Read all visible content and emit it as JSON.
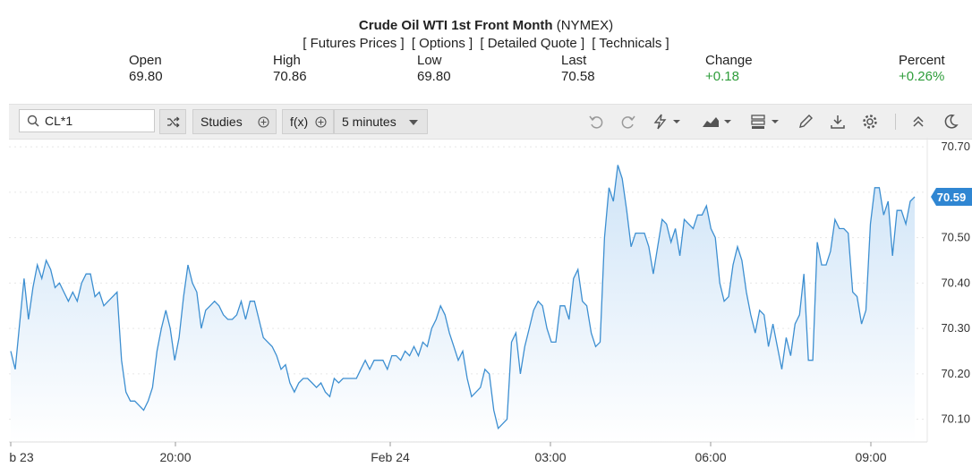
{
  "header": {
    "title_bold": "Crude Oil WTI 1st Front Month",
    "title_suffix": "(NYMEX)",
    "links": [
      "[ Futures Prices ]",
      "[ Options ]",
      "[ Detailed Quote ]",
      "[ Technicals ]"
    ]
  },
  "quote": {
    "open_label": "Open",
    "open_value": "69.80",
    "high_label": "High",
    "high_value": "70.86",
    "low_label": "Low",
    "low_value": "69.80",
    "last_label": "Last",
    "last_value": "70.58",
    "change_label": "Change",
    "change_value": "+0.18",
    "percent_label": "Percent",
    "percent_value": "+0.26%"
  },
  "toolbar": {
    "symbol_value": "CL*1",
    "studies_label": "Studies",
    "fx_label": "f(x)",
    "interval_label": "5 minutes",
    "icons": [
      "search-icon",
      "shuffle-icon",
      "plus-circle-icon",
      "undo-icon",
      "redo-icon",
      "lightning-icon",
      "area-chart-icon",
      "bars-icon",
      "pencil-icon",
      "download-icon",
      "gear-icon",
      "collapse-icon",
      "moon-icon"
    ]
  },
  "colors": {
    "line": "#3d8fd1",
    "fill_top": "#cfe4f7",
    "fill_bottom": "#ffffff",
    "up": "#2e9d3a",
    "badge": "#2f86d2"
  },
  "chart_data": {
    "type": "area",
    "ylim": [
      70.05,
      70.72
    ],
    "y_ticks": [
      "70.70",
      "70.60",
      "70.50",
      "70.40",
      "70.30",
      "70.20",
      "70.10"
    ],
    "y_tick_values": [
      70.7,
      70.6,
      70.5,
      70.4,
      70.3,
      70.2,
      70.1
    ],
    "x_ticks": [
      "b 23",
      "20:00",
      "Feb 24",
      "03:00",
      "06:00",
      "09:00"
    ],
    "last_price_label": "70.59",
    "last_price": 70.59,
    "values": [
      70.25,
      70.21,
      70.31,
      70.41,
      70.32,
      70.39,
      70.44,
      70.41,
      70.45,
      70.43,
      70.39,
      70.4,
      70.38,
      70.36,
      70.38,
      70.36,
      70.4,
      70.42,
      70.42,
      70.37,
      70.38,
      70.35,
      70.36,
      70.37,
      70.38,
      70.23,
      70.16,
      70.14,
      70.14,
      70.13,
      70.12,
      70.14,
      70.17,
      70.25,
      70.3,
      70.34,
      70.3,
      70.23,
      70.28,
      70.37,
      70.44,
      70.4,
      70.38,
      70.3,
      70.34,
      70.35,
      70.36,
      70.35,
      70.33,
      70.32,
      70.32,
      70.33,
      70.36,
      70.32,
      70.36,
      70.36,
      70.32,
      70.28,
      70.27,
      70.26,
      70.24,
      70.21,
      70.22,
      70.18,
      70.16,
      70.18,
      70.19,
      70.19,
      70.18,
      70.17,
      70.18,
      70.16,
      70.15,
      70.19,
      70.18,
      70.19,
      70.19,
      70.19,
      70.19,
      70.21,
      70.23,
      70.21,
      70.23,
      70.23,
      70.23,
      70.21,
      70.24,
      70.24,
      70.23,
      70.25,
      70.24,
      70.26,
      70.24,
      70.27,
      70.26,
      70.3,
      70.32,
      70.35,
      70.33,
      70.29,
      70.26,
      70.23,
      70.25,
      70.19,
      70.15,
      70.16,
      70.17,
      70.21,
      70.2,
      70.12,
      70.08,
      70.09,
      70.1,
      70.27,
      70.29,
      70.2,
      70.26,
      70.3,
      70.34,
      70.36,
      70.35,
      70.3,
      70.27,
      70.27,
      70.35,
      70.35,
      70.32,
      70.41,
      70.43,
      70.36,
      70.35,
      70.29,
      70.26,
      70.27,
      70.5,
      70.61,
      70.58,
      70.66,
      70.63,
      70.56,
      70.48,
      70.51,
      70.51,
      70.51,
      70.48,
      70.42,
      70.48,
      70.54,
      70.53,
      70.49,
      70.52,
      70.46,
      70.54,
      70.53,
      70.52,
      70.55,
      70.55,
      70.57,
      70.52,
      70.5,
      70.4,
      70.36,
      70.37,
      70.44,
      70.48,
      70.45,
      70.38,
      70.33,
      70.29,
      70.34,
      70.33,
      70.26,
      70.31,
      70.26,
      70.21,
      70.28,
      70.24,
      70.31,
      70.33,
      70.42,
      70.23,
      70.23,
      70.49,
      70.44,
      70.44,
      70.47,
      70.54,
      70.52,
      70.52,
      70.51,
      70.38,
      70.37,
      70.31,
      70.34,
      70.53,
      70.61,
      70.61,
      70.55,
      70.58,
      70.46,
      70.56,
      70.56,
      70.53,
      70.58,
      70.59
    ]
  }
}
